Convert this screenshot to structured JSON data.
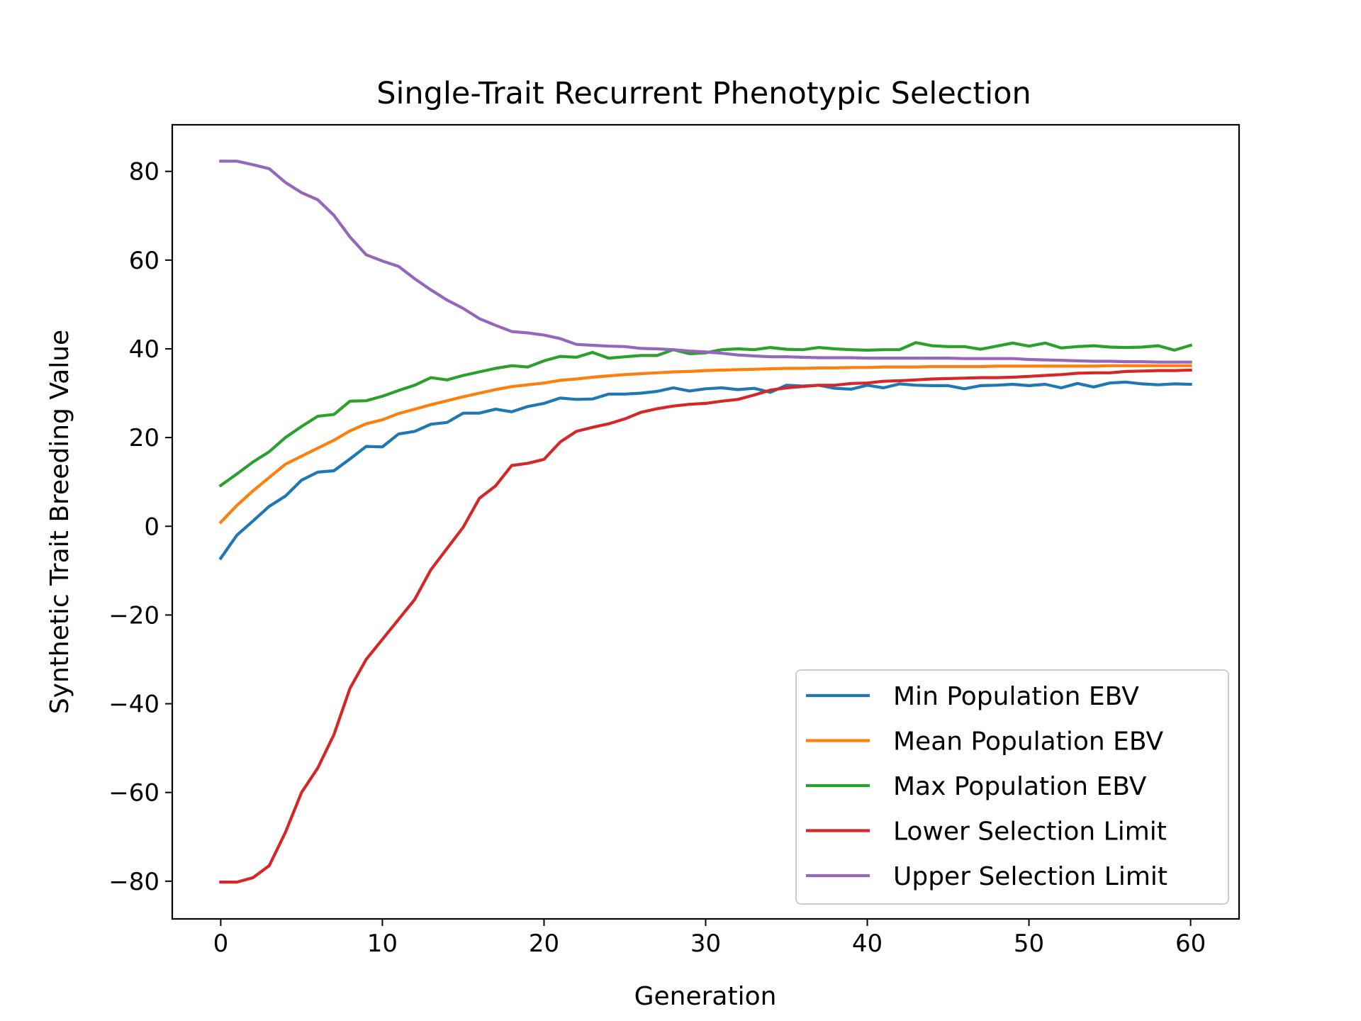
{
  "chart_data": {
    "type": "line",
    "title": "Single-Trait Recurrent Phenotypic Selection",
    "xlabel": "Generation",
    "ylabel": "Synthetic Trait Breeding Value",
    "xlim": [
      -3,
      63
    ],
    "ylim": [
      -88.5,
      90.5
    ],
    "xticks": [
      0,
      10,
      20,
      30,
      40,
      50,
      60
    ],
    "yticks": [
      -80,
      -60,
      -40,
      -20,
      0,
      20,
      40,
      60,
      80
    ],
    "xtick_labels": [
      "0",
      "10",
      "20",
      "30",
      "40",
      "50",
      "60"
    ],
    "ytick_labels": [
      "−80",
      "−60",
      "−40",
      "−20",
      "0",
      "20",
      "40",
      "60",
      "80"
    ],
    "grid": false,
    "legend_position": "lower-right",
    "x": [
      0,
      1,
      2,
      3,
      4,
      5,
      6,
      7,
      8,
      9,
      10,
      11,
      12,
      13,
      14,
      15,
      16,
      17,
      18,
      19,
      20,
      21,
      22,
      23,
      24,
      25,
      26,
      27,
      28,
      29,
      30,
      31,
      32,
      33,
      34,
      35,
      36,
      37,
      38,
      39,
      40,
      41,
      42,
      43,
      44,
      45,
      46,
      47,
      48,
      49,
      50,
      51,
      52,
      53,
      54,
      55,
      56,
      57,
      58,
      59,
      60
    ],
    "series": [
      {
        "name": "Min Population EBV",
        "color": "#1f77b4",
        "values": [
          -7.2,
          -2,
          1.2,
          4.5,
          6.8,
          10.4,
          12.2,
          12.5,
          15.2,
          18,
          17.9,
          20.8,
          21.4,
          23,
          23.4,
          25.5,
          25.5,
          26.4,
          25.8,
          27,
          27.7,
          28.9,
          28.6,
          28.7,
          29.8,
          29.8,
          30,
          30.4,
          31.2,
          30.5,
          31,
          31.2,
          30.8,
          31.1,
          30.2,
          31.8,
          31.6,
          31.8,
          31.1,
          30.9,
          31.8,
          31.2,
          32.1,
          31.8,
          31.7,
          31.7,
          31,
          31.7,
          31.8,
          32,
          31.7,
          32,
          31.2,
          32.2,
          31.4,
          32.3,
          32.5,
          32.1,
          31.9,
          32.1,
          32
        ]
      },
      {
        "name": "Mean Population EBV",
        "color": "#ff7f0e",
        "values": [
          0.9,
          4.7,
          8,
          11,
          14,
          15.8,
          17.6,
          19.4,
          21.5,
          23.1,
          24,
          25.4,
          26.4,
          27.4,
          28.3,
          29.2,
          30,
          30.8,
          31.5,
          31.9,
          32.3,
          32.9,
          33.2,
          33.6,
          33.9,
          34.2,
          34.4,
          34.6,
          34.8,
          34.9,
          35.1,
          35.2,
          35.3,
          35.4,
          35.5,
          35.6,
          35.6,
          35.7,
          35.7,
          35.8,
          35.8,
          35.9,
          35.9,
          35.9,
          36,
          36,
          36,
          36,
          36.1,
          36.1,
          36.1,
          36.1,
          36.1,
          36.1,
          36.1,
          36.2,
          36.2,
          36.2,
          36.2,
          36.2,
          36.2
        ]
      },
      {
        "name": "Max Population EBV",
        "color": "#2ca02c",
        "values": [
          9.2,
          11.8,
          14.5,
          16.8,
          20,
          22.5,
          24.8,
          25.2,
          28.2,
          28.3,
          29.3,
          30.6,
          31.8,
          33.5,
          33,
          34,
          34.8,
          35.6,
          36.2,
          35.9,
          37.3,
          38.3,
          38.1,
          39.2,
          37.9,
          38.2,
          38.5,
          38.5,
          39.8,
          38.9,
          39.1,
          39.8,
          40,
          39.8,
          40.3,
          39.9,
          39.8,
          40.3,
          40,
          39.8,
          39.7,
          39.8,
          39.8,
          41.4,
          40.7,
          40.5,
          40.5,
          39.9,
          40.6,
          41.3,
          40.6,
          41.3,
          40.2,
          40.5,
          40.7,
          40.4,
          40.3,
          40.4,
          40.7,
          39.7,
          40.8
        ]
      },
      {
        "name": "Lower Selection Limit",
        "color": "#d62728",
        "values": [
          -80.2,
          -80.2,
          -79.2,
          -76.5,
          -69,
          -60,
          -54.5,
          -47,
          -36.5,
          -30,
          -25.5,
          -21,
          -16.5,
          -9.8,
          -5,
          -0.2,
          6.3,
          9.1,
          13.7,
          14.2,
          15.1,
          19,
          21.4,
          22.3,
          23.1,
          24.2,
          25.7,
          26.5,
          27.1,
          27.5,
          27.7,
          28.2,
          28.6,
          29.6,
          30.7,
          31.2,
          31.5,
          31.8,
          31.8,
          32.2,
          32.3,
          32.7,
          32.8,
          33,
          33.2,
          33.3,
          33.4,
          33.5,
          33.5,
          33.6,
          33.8,
          34,
          34.2,
          34.5,
          34.6,
          34.6,
          34.9,
          35,
          35.1,
          35.1,
          35.2
        ]
      },
      {
        "name": "Upper Selection Limit",
        "color": "#9467bd",
        "values": [
          82.3,
          82.3,
          81.5,
          80.6,
          77.5,
          75.2,
          73.6,
          70.1,
          65.2,
          61.2,
          59.8,
          58.6,
          55.8,
          53.3,
          51,
          49.1,
          46.8,
          45.3,
          43.9,
          43.6,
          43.1,
          42.3,
          41,
          40.8,
          40.6,
          40.5,
          40.1,
          40,
          39.8,
          39.5,
          39.3,
          39,
          38.6,
          38.4,
          38.2,
          38.2,
          38.1,
          38,
          38,
          38,
          37.9,
          37.9,
          37.9,
          37.9,
          37.9,
          37.9,
          37.8,
          37.8,
          37.8,
          37.8,
          37.6,
          37.5,
          37.4,
          37.3,
          37.2,
          37.2,
          37.1,
          37.1,
          37,
          37,
          37
        ]
      }
    ]
  }
}
